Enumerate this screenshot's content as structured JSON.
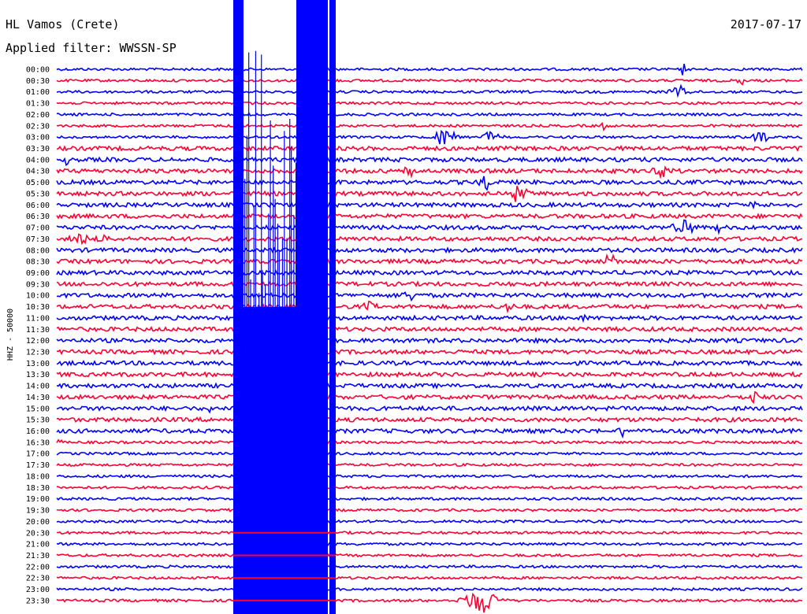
{
  "header": {
    "station": "HL Vamos (Crete)",
    "date": "2017-07-17",
    "filter": "Applied filter: WWSSN-SP"
  },
  "chart_data": {
    "type": "line",
    "title": "HL Vamos (Crete)",
    "subtitle": "Applied filter: WWSSN-SP",
    "date": "2017-07-17",
    "ylabel": "HHZ - 50000",
    "row_labels": [
      "00:00",
      "00:30",
      "01:00",
      "01:30",
      "02:00",
      "02:30",
      "03:00",
      "03:30",
      "04:00",
      "04:30",
      "05:00",
      "05:30",
      "06:00",
      "06:30",
      "07:00",
      "07:30",
      "08:00",
      "08:30",
      "09:00",
      "09:30",
      "10:00",
      "10:30",
      "11:00",
      "11:30",
      "12:00",
      "12:30",
      "13:00",
      "13:30",
      "14:00",
      "14:30",
      "15:00",
      "15:30",
      "16:00",
      "16:30",
      "17:00",
      "17:30",
      "18:00",
      "18:30",
      "19:00",
      "19:30",
      "20:00",
      "20:30",
      "21:00",
      "21:30",
      "22:00",
      "22:30",
      "23:00",
      "23:30"
    ],
    "series_colors": [
      "#0000ff",
      "#ff0033"
    ],
    "minutes_per_row": 30
  }
}
